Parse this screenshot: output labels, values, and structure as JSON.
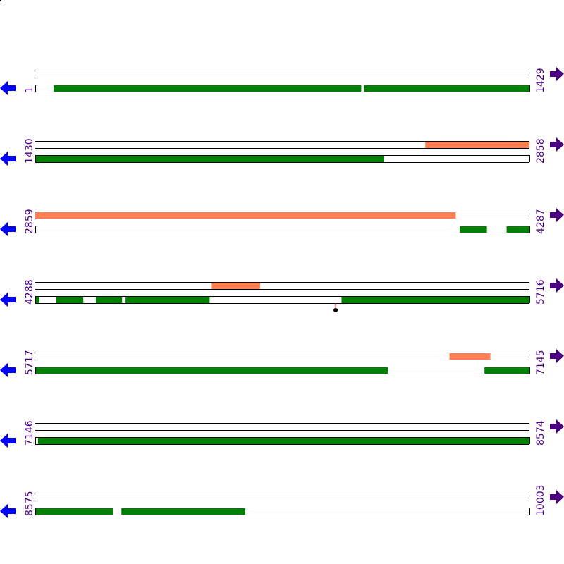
{
  "colors": {
    "feature_top": "#ff7f50",
    "feature_bottom": "#008000",
    "line": "#000000",
    "label": "#4b0082",
    "left_arrow": "#0000ff",
    "right_arrow": "#4b0082",
    "marker_stem": "#ff0000",
    "marker_head": "#000000"
  },
  "icons": {
    "left": "arrow-left-icon",
    "right": "arrow-right-icon"
  },
  "rows": [
    {
      "start": "1",
      "end": "1429",
      "s": 1,
      "e": 1429,
      "top": [],
      "bottom": [
        [
          54,
          943
        ],
        [
          951,
          1429
        ]
      ],
      "markers": []
    },
    {
      "start": "1430",
      "end": "2858",
      "s": 1430,
      "e": 2858,
      "top": [
        [
          2557,
          2858
        ]
      ],
      "bottom": [
        [
          1430,
          2437
        ]
      ],
      "markers": []
    },
    {
      "start": "2859",
      "end": "4287",
      "s": 2859,
      "e": 4287,
      "top": [
        [
          2859,
          4074
        ]
      ],
      "bottom": [
        [
          4086,
          4164
        ],
        [
          4221,
          4287
        ]
      ],
      "markers": []
    },
    {
      "start": "4288",
      "end": "5716",
      "s": 4288,
      "e": 5716,
      "top": [
        [
          4798,
          4938
        ]
      ],
      "bottom": [
        [
          4288,
          4300
        ],
        [
          4349,
          4427
        ],
        [
          4463,
          4539
        ],
        [
          4549,
          4792
        ],
        [
          5173,
          5716
        ]
      ],
      "markers": [
        5156
      ]
    },
    {
      "start": "5717",
      "end": "7145",
      "s": 5717,
      "e": 7145,
      "top": [
        [
          6914,
          7032
        ]
      ],
      "bottom": [
        [
          5717,
          6736
        ],
        [
          7015,
          7145
        ]
      ],
      "markers": []
    },
    {
      "start": "7146",
      "end": "8574",
      "s": 7146,
      "e": 8574,
      "top": [],
      "bottom": [
        [
          7154,
          8574
        ]
      ],
      "markers": []
    },
    {
      "start": "8575",
      "end": "10003",
      "s": 8575,
      "e": 10003,
      "top": [],
      "bottom": [
        [
          8575,
          8799
        ],
        [
          8824,
          9182
        ]
      ],
      "markers": []
    }
  ]
}
